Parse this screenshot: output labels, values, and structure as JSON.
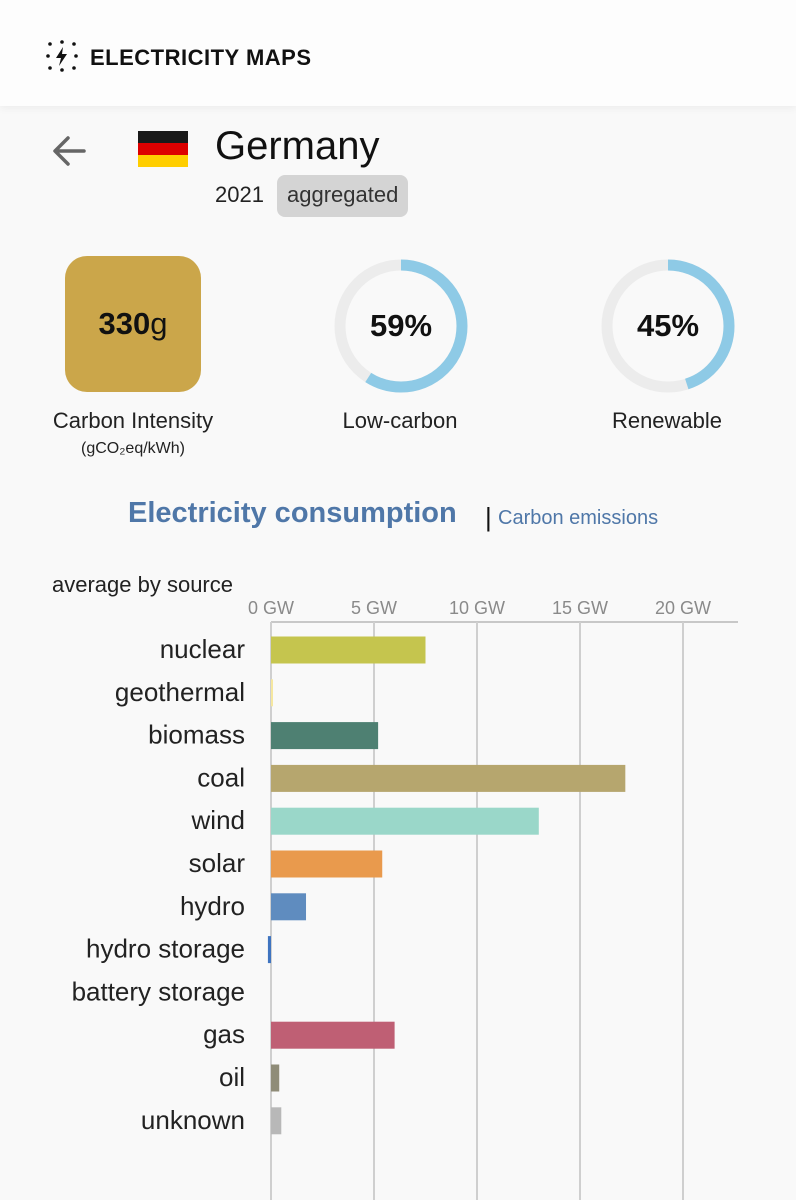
{
  "app": {
    "brand": "ELECTRICITY MAPS",
    "logo_icon": "lightning-bolt-icon"
  },
  "zone": {
    "country": "Germany",
    "year": "2021",
    "badge": "aggregated",
    "flag_colors": [
      "#1a1a1a",
      "#dd0000",
      "#ffce00"
    ]
  },
  "metrics": {
    "carbon_intensity": {
      "value": "330",
      "unit": "g",
      "label": "Carbon Intensity",
      "unit_label": "(gCO₂eq/kWh)",
      "color": "#cba64a"
    },
    "low_carbon": {
      "value": "59%",
      "label": "Low-carbon",
      "fraction": 0.59
    },
    "renewable": {
      "value": "45%",
      "label": "Renewable",
      "fraction": 0.45
    },
    "ring_color": "#8ecae6",
    "ring_track_color": "#ececec"
  },
  "tabs": {
    "active": "Electricity consumption",
    "separator": "|",
    "other": "Carbon emissions"
  },
  "chart_data": {
    "type": "bar",
    "orientation": "horizontal",
    "subtitle": "average by source",
    "x_ticks": [
      "0 GW",
      "5 GW",
      "10 GW",
      "15 GW",
      "20 GW"
    ],
    "xlim": [
      0,
      22.5
    ],
    "unit": "GW",
    "grid": true,
    "categories": [
      "nuclear",
      "geothermal",
      "biomass",
      "coal",
      "wind",
      "solar",
      "hydro",
      "hydro storage",
      "battery storage",
      "gas",
      "oil",
      "unknown"
    ],
    "values": [
      7.5,
      0.02,
      5.2,
      17.2,
      13.0,
      5.4,
      1.7,
      -0.15,
      0,
      6.0,
      0.4,
      0.5
    ],
    "colors": [
      "#c5c54e",
      "#f5e7a0",
      "#4e8072",
      "#b6a66e",
      "#9ad7c9",
      "#e99a4d",
      "#5f8cbf",
      "#3f74c0",
      "#cccccc",
      "#bf5f74",
      "#8f8c78",
      "#b8b8b8"
    ]
  }
}
